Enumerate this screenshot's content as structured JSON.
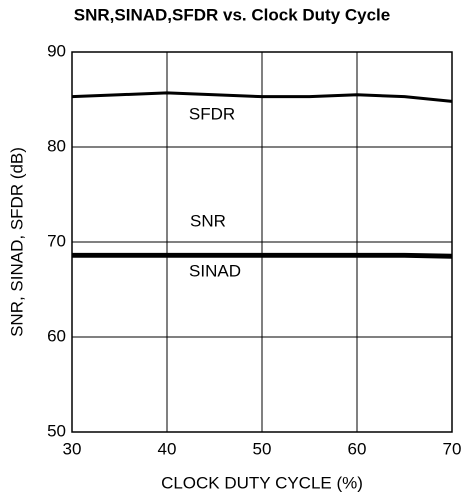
{
  "chart_data": {
    "type": "line",
    "title": "SNR,SINAD,SFDR vs. Clock Duty Cycle",
    "xlabel": "CLOCK DUTY CYCLE (%)",
    "ylabel": "SNR, SINAD, SFDR (dB)",
    "x": [
      30,
      35,
      40,
      45,
      50,
      55,
      60,
      65,
      70
    ],
    "series": [
      {
        "name": "SFDR",
        "color": "#000000",
        "values": [
          85.3,
          85.5,
          85.7,
          85.5,
          85.3,
          85.3,
          85.5,
          85.3,
          84.8
        ]
      },
      {
        "name": "SNR",
        "color": "#000000",
        "values": [
          68.7,
          68.7,
          68.7,
          68.7,
          68.7,
          68.7,
          68.7,
          68.7,
          68.6
        ]
      },
      {
        "name": "SINAD",
        "color": "#000000",
        "values": [
          68.5,
          68.5,
          68.5,
          68.5,
          68.5,
          68.5,
          68.5,
          68.5,
          68.4
        ]
      }
    ],
    "xlim": [
      30,
      70
    ],
    "xticks": [
      30,
      40,
      50,
      60,
      70
    ],
    "ylim": [
      50,
      90
    ],
    "yticks": [
      50,
      60,
      70,
      80,
      90
    ],
    "grid": true
  }
}
